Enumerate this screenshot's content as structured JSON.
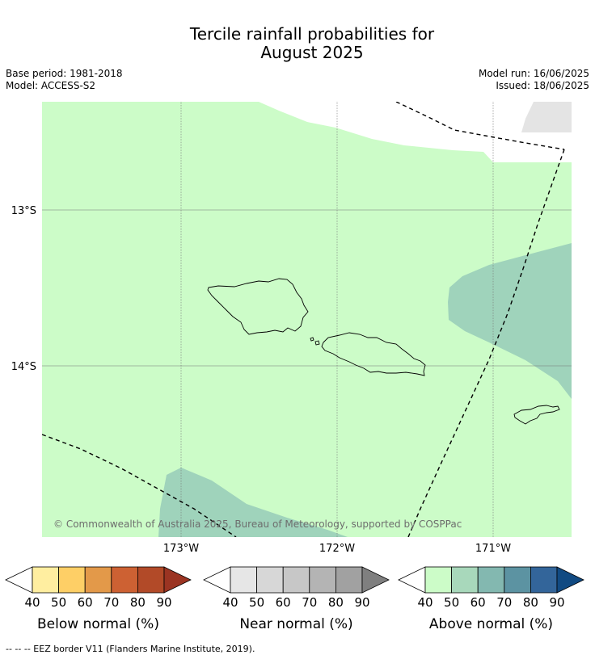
{
  "title_line1": "Tercile rainfall probabilities for",
  "title_line2": "August 2025",
  "base_period": "Base period: 1981-2018",
  "model": "Model: ACCESS-S2",
  "model_run": "Model run: 16/06/2025",
  "issued": "Issued: 18/06/2025",
  "map": {
    "lat_labels": [
      "13°S",
      "14°S"
    ],
    "lon_labels": [
      "173°W",
      "172°W",
      "171°W"
    ],
    "copyright": "© Commonwealth of Australia 2025, Bureau of Meteorology, supported by COSPPac",
    "colors": {
      "above_40": "#ccfcc8",
      "above_50": "#9fd3bb",
      "no_data": "#e4e4e4",
      "land_outline": "#000000"
    }
  },
  "colorbars": [
    {
      "title": "Below normal (%)",
      "ticks": [
        "40",
        "50",
        "60",
        "70",
        "80",
        "90"
      ],
      "colors": [
        "#ffffff",
        "#ffeea0",
        "#fecf66",
        "#e39949",
        "#cd6133",
        "#b24a28",
        "#9b3422"
      ]
    },
    {
      "title": "Near normal (%)",
      "ticks": [
        "40",
        "50",
        "60",
        "70",
        "80",
        "90"
      ],
      "colors": [
        "#ffffff",
        "#e6e6e6",
        "#d7d7d7",
        "#c7c7c7",
        "#b4b4b4",
        "#a1a1a1",
        "#7f7f7f"
      ]
    },
    {
      "title": "Above normal (%)",
      "ticks": [
        "40",
        "50",
        "60",
        "70",
        "80",
        "90"
      ],
      "colors": [
        "#ffffff",
        "#ccfcc8",
        "#a8d8bb",
        "#83b8b0",
        "#5c93a2",
        "#33659a",
        "#114a82"
      ]
    }
  ],
  "footnote": "--  --  -- EEZ border V11 (Flanders Marine Institute, 2019)."
}
